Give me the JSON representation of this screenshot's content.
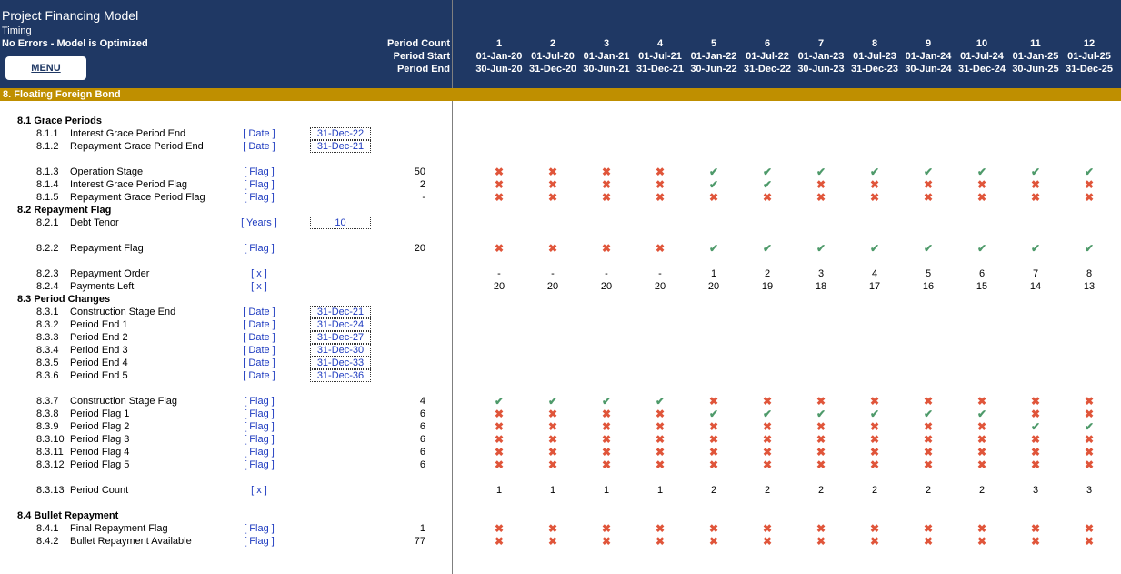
{
  "header": {
    "title": "Project Financing Model",
    "subtitle": "Timing",
    "status": "No Errors - Model is Optimized",
    "menu_label": "MENU",
    "period_count_label": "Period Count",
    "period_start_label": "Period Start",
    "period_end_label": "Period End",
    "periods": [
      {
        "n": "1",
        "start": "01-Jan-20",
        "end": "30-Jun-20"
      },
      {
        "n": "2",
        "start": "01-Jul-20",
        "end": "31-Dec-20"
      },
      {
        "n": "3",
        "start": "01-Jan-21",
        "end": "30-Jun-21"
      },
      {
        "n": "4",
        "start": "01-Jul-21",
        "end": "31-Dec-21"
      },
      {
        "n": "5",
        "start": "01-Jan-22",
        "end": "30-Jun-22"
      },
      {
        "n": "6",
        "start": "01-Jul-22",
        "end": "31-Dec-22"
      },
      {
        "n": "7",
        "start": "01-Jan-23",
        "end": "30-Jun-23"
      },
      {
        "n": "8",
        "start": "01-Jul-23",
        "end": "31-Dec-23"
      },
      {
        "n": "9",
        "start": "01-Jan-24",
        "end": "30-Jun-24"
      },
      {
        "n": "10",
        "start": "01-Jul-24",
        "end": "31-Dec-24"
      },
      {
        "n": "11",
        "start": "01-Jan-25",
        "end": "30-Jun-25"
      },
      {
        "n": "12",
        "start": "01-Jul-25",
        "end": "31-Dec-25"
      }
    ]
  },
  "section": {
    "title": "8.  Floating Foreign Bond"
  },
  "colors": {
    "header_bg": "#1f3864",
    "section_bg": "#bf8f00",
    "check": "#4e9a6a",
    "cross": "#e0553a",
    "unit_text": "#1f3cc0"
  },
  "rows": [
    {
      "type": "group",
      "label": "8.1  Grace Periods"
    },
    {
      "type": "line",
      "num": "8.1.1",
      "label": "Interest Grace Period End",
      "unit": "[ Date ]",
      "input": "31-Dec-22"
    },
    {
      "type": "line",
      "num": "8.1.2",
      "label": "Repayment Grace Period End",
      "unit": "[ Date ]",
      "input": "31-Dec-21"
    },
    {
      "type": "blank"
    },
    {
      "type": "line",
      "num": "8.1.3",
      "label": "Operation Stage",
      "unit": "[ Flag ]",
      "total": "50",
      "flags": "xxxxvvvvvvvv"
    },
    {
      "type": "line",
      "num": "8.1.4",
      "label": "Interest Grace Period Flag",
      "unit": "[ Flag ]",
      "total": "2",
      "flags": "xxxxvvxxxxxx"
    },
    {
      "type": "line",
      "num": "8.1.5",
      "label": "Repayment Grace Period Flag",
      "unit": "[ Flag ]",
      "total": "-",
      "flags": "xxxxxxxxxxxx"
    },
    {
      "type": "group",
      "label": "8.2  Repayment Flag"
    },
    {
      "type": "line",
      "num": "8.2.1",
      "label": "Debt Tenor",
      "unit": "[ Years ]",
      "input": "10"
    },
    {
      "type": "blank"
    },
    {
      "type": "line",
      "num": "8.2.2",
      "label": "Repayment Flag",
      "unit": "[ Flag ]",
      "total": "20",
      "flags": "xxxxvvvvvvvv"
    },
    {
      "type": "blank"
    },
    {
      "type": "line",
      "num": "8.2.3",
      "label": "Repayment Order",
      "unit": "[ x ]",
      "values": [
        "-",
        "-",
        "-",
        "-",
        "1",
        "2",
        "3",
        "4",
        "5",
        "6",
        "7",
        "8"
      ]
    },
    {
      "type": "line",
      "num": "8.2.4",
      "label": "Payments Left",
      "unit": "[ x ]",
      "values": [
        "20",
        "20",
        "20",
        "20",
        "20",
        "19",
        "18",
        "17",
        "16",
        "15",
        "14",
        "13"
      ]
    },
    {
      "type": "group",
      "label": "8.3  Period Changes"
    },
    {
      "type": "line",
      "num": "8.3.1",
      "label": "Construction Stage End",
      "unit": "[ Date ]",
      "input": "31-Dec-21"
    },
    {
      "type": "line",
      "num": "8.3.2",
      "label": "Period End 1",
      "unit": "[ Date ]",
      "input": "31-Dec-24"
    },
    {
      "type": "line",
      "num": "8.3.3",
      "label": "Period End 2",
      "unit": "[ Date ]",
      "input": "31-Dec-27"
    },
    {
      "type": "line",
      "num": "8.3.4",
      "label": "Period End 3",
      "unit": "[ Date ]",
      "input": "31-Dec-30"
    },
    {
      "type": "line",
      "num": "8.3.5",
      "label": "Period End 4",
      "unit": "[ Date ]",
      "input": "31-Dec-33"
    },
    {
      "type": "line",
      "num": "8.3.6",
      "label": "Period End 5",
      "unit": "[ Date ]",
      "input": "31-Dec-36"
    },
    {
      "type": "blank"
    },
    {
      "type": "line",
      "num": "8.3.7",
      "label": "Construction Stage Flag",
      "unit": "[ Flag ]",
      "total": "4",
      "flags": "vvvvxxxxxxxx"
    },
    {
      "type": "line",
      "num": "8.3.8",
      "label": "Period Flag 1",
      "unit": "[ Flag ]",
      "total": "6",
      "flags": "xxxxvvvvvvxx"
    },
    {
      "type": "line",
      "num": "8.3.9",
      "label": "Period Flag 2",
      "unit": "[ Flag ]",
      "total": "6",
      "flags": "xxxxxxxxxxvv"
    },
    {
      "type": "line",
      "num": "8.3.10",
      "label": "Period Flag 3",
      "unit": "[ Flag ]",
      "total": "6",
      "flags": "xxxxxxxxxxxx"
    },
    {
      "type": "line",
      "num": "8.3.11",
      "label": "Period Flag 4",
      "unit": "[ Flag ]",
      "total": "6",
      "flags": "xxxxxxxxxxxx"
    },
    {
      "type": "line",
      "num": "8.3.12",
      "label": "Period Flag 5",
      "unit": "[ Flag ]",
      "total": "6",
      "flags": "xxxxxxxxxxxx"
    },
    {
      "type": "blank"
    },
    {
      "type": "line",
      "num": "8.3.13",
      "label": "Period Count",
      "unit": "[ x ]",
      "values": [
        "1",
        "1",
        "1",
        "1",
        "2",
        "2",
        "2",
        "2",
        "2",
        "2",
        "3",
        "3"
      ]
    },
    {
      "type": "blank"
    },
    {
      "type": "group",
      "label": "8.4  Bullet Repayment"
    },
    {
      "type": "line",
      "num": "8.4.1",
      "label": "Final Repayment Flag",
      "unit": "[ Flag ]",
      "total": "1",
      "flags": "xxxxxxxxxxxx"
    },
    {
      "type": "line",
      "num": "8.4.2",
      "label": "Bullet Repayment Available",
      "unit": "[ Flag ]",
      "total": "77",
      "flags": "xxxxxxxxxxxx"
    }
  ]
}
